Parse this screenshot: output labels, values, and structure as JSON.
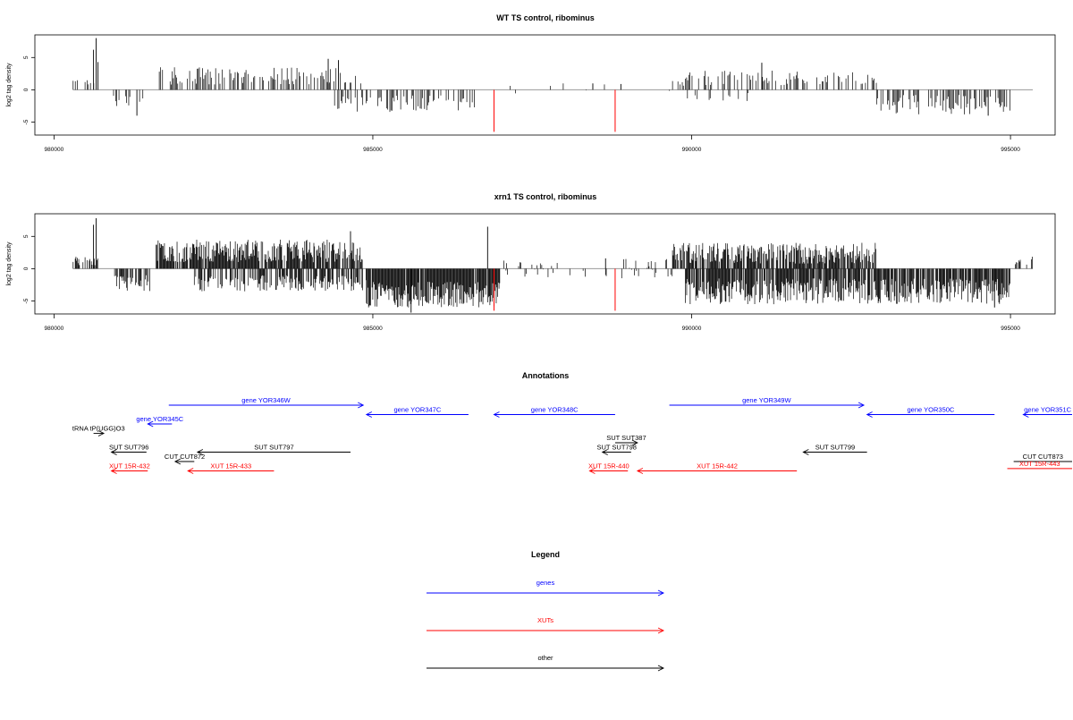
{
  "chart_data": [
    {
      "type": "bar",
      "title": "WT TS control, ribominus",
      "ylabel": "log2 tag density",
      "xlim": [
        979700,
        995700
      ],
      "ylim": [
        -7,
        8.5
      ],
      "x_ticks": [
        980000,
        985000,
        990000,
        995000
      ],
      "x_tick_labels": [
        "980000",
        "985000",
        "990000",
        "995000"
      ],
      "y_ticks": [
        5,
        0,
        -5
      ],
      "y_tick_labels": [
        "5",
        "0",
        "-5"
      ],
      "baseline_color": "#999999",
      "bar_color": "#000000",
      "marker_color": "#ff0000",
      "markers": [
        {
          "x": 986900,
          "y": -6.5
        },
        {
          "x": 988800,
          "y": -6.5
        }
      ],
      "signal": {
        "seed": 7,
        "step": 17,
        "regions": [
          {
            "start": 980300,
            "end": 980700,
            "min": 0.3,
            "max": 1.5,
            "prob": 0.3
          },
          {
            "start": 980900,
            "end": 981400,
            "min": -2.5,
            "max": -0.8,
            "prob": 0.35
          },
          {
            "start": 981600,
            "end": 984850,
            "min": 0.8,
            "max": 3.5,
            "prob": 0.55
          },
          {
            "start": 984400,
            "end": 986600,
            "min": -3.5,
            "max": -0.8,
            "prob": 0.45
          },
          {
            "start": 987000,
            "end": 989700,
            "min": -0.6,
            "max": 1.0,
            "prob": 0.03
          },
          {
            "start": 989700,
            "end": 992900,
            "min": 0.6,
            "max": 3.0,
            "prob": 0.45
          },
          {
            "start": 989900,
            "end": 990900,
            "min": -1.8,
            "max": -0.5,
            "prob": 0.15
          },
          {
            "start": 992900,
            "end": 995000,
            "min": -3.8,
            "max": -0.8,
            "prob": 0.55
          },
          {
            "start": 995000,
            "end": 995350,
            "min": 0.5,
            "max": 2.0,
            "prob": 0.25
          }
        ],
        "spikes": [
          {
            "x": 980660,
            "y": 8.0
          },
          {
            "x": 980620,
            "y": 6.2
          },
          {
            "x": 980690,
            "y": 4.3
          },
          {
            "x": 981300,
            "y": -4.0
          },
          {
            "x": 984300,
            "y": 4.8
          },
          {
            "x": 984460,
            "y": 4.6
          },
          {
            "x": 988450,
            "y": 1.0
          },
          {
            "x": 988890,
            "y": 0.9
          },
          {
            "x": 991100,
            "y": 4.2
          },
          {
            "x": 994650,
            "y": -4.0
          }
        ]
      }
    },
    {
      "type": "bar",
      "title": "xrn1 TS control, ribominus",
      "ylabel": "log2 tag density",
      "xlim": [
        979700,
        995700
      ],
      "ylim": [
        -7,
        8.5
      ],
      "x_ticks": [
        980000,
        985000,
        990000,
        995000
      ],
      "x_tick_labels": [
        "980000",
        "985000",
        "990000",
        "995000"
      ],
      "y_ticks": [
        5,
        0,
        -5
      ],
      "y_tick_labels": [
        "5",
        "0",
        "-5"
      ],
      "baseline_color": "#999999",
      "bar_color": "#000000",
      "marker_color": "#ff0000",
      "markers": [
        {
          "x": 986900,
          "y": -6.5
        },
        {
          "x": 988800,
          "y": -6.5
        }
      ],
      "signal": {
        "seed": 23,
        "step": 11,
        "regions": [
          {
            "start": 980300,
            "end": 980700,
            "min": 0.5,
            "max": 2.0,
            "prob": 0.3
          },
          {
            "start": 980950,
            "end": 981500,
            "min": -3.5,
            "max": -1.0,
            "prob": 0.6
          },
          {
            "start": 981600,
            "end": 984850,
            "min": 1.0,
            "max": 4.5,
            "prob": 0.85
          },
          {
            "start": 982200,
            "end": 984900,
            "min": -3.5,
            "max": -1.0,
            "prob": 0.6
          },
          {
            "start": 984900,
            "end": 987000,
            "min": -6.0,
            "max": -2.0,
            "prob": 0.95
          },
          {
            "start": 987000,
            "end": 989700,
            "min": -1.5,
            "max": 1.5,
            "prob": 0.2
          },
          {
            "start": 989700,
            "end": 992900,
            "min": 0.8,
            "max": 4.0,
            "prob": 0.75
          },
          {
            "start": 989900,
            "end": 995000,
            "min": -5.5,
            "max": -1.5,
            "prob": 0.85
          },
          {
            "start": 995000,
            "end": 995350,
            "min": 0.5,
            "max": 2.0,
            "prob": 0.3
          }
        ],
        "spikes": [
          {
            "x": 980660,
            "y": 7.8
          },
          {
            "x": 980620,
            "y": 6.8
          },
          {
            "x": 984650,
            "y": 5.8
          },
          {
            "x": 986800,
            "y": 6.5
          },
          {
            "x": 988650,
            "y": 1.6
          },
          {
            "x": 994750,
            "y": -6.0
          },
          {
            "x": 985600,
            "y": -6.8
          }
        ]
      }
    }
  ],
  "annotations": {
    "title": "Annotations",
    "xlim": [
      979700,
      995700
    ],
    "features": [
      {
        "label": "gene YOR346W",
        "start": 981800,
        "end": 984850,
        "strand": "+",
        "row": 0,
        "color": "#0000ff"
      },
      {
        "label": "gene YOR347C",
        "start": 984900,
        "end": 986500,
        "strand": "-",
        "row": 1,
        "color": "#0000ff"
      },
      {
        "label": "gene YOR348C",
        "start": 986900,
        "end": 988800,
        "strand": "-",
        "row": 1,
        "color": "#0000ff"
      },
      {
        "label": "gene YOR349W",
        "start": 989650,
        "end": 992700,
        "strand": "+",
        "row": 0,
        "color": "#0000ff"
      },
      {
        "label": "gene YOR350C",
        "start": 992750,
        "end": 994750,
        "strand": "-",
        "row": 1,
        "color": "#0000ff"
      },
      {
        "label": "gene YOR345C",
        "start": 981470,
        "end": 981850,
        "strand": "-",
        "row": 2,
        "color": "#0000ff"
      },
      {
        "label": "gene YOR351C",
        "start": 995200,
        "end": 996500,
        "strand": "-",
        "row": 1,
        "color": "#0000ff"
      },
      {
        "label": "tRNA tP(UGG)O3",
        "start": 980620,
        "end": 980780,
        "strand": "+",
        "row": 3,
        "color": "#000000"
      },
      {
        "label": "SUT SUT796",
        "start": 980900,
        "end": 981450,
        "strand": "-",
        "row": 5,
        "color": "#000000"
      },
      {
        "label": "SUT SUT797",
        "start": 982250,
        "end": 984650,
        "strand": "-",
        "row": 5,
        "color": "#000000"
      },
      {
        "label": "SUT SUT387",
        "start": 988800,
        "end": 989150,
        "strand": "+",
        "row": 4,
        "color": "#000000"
      },
      {
        "label": "SUT SUT798",
        "start": 988600,
        "end": 989050,
        "strand": "-",
        "row": 5,
        "color": "#000000"
      },
      {
        "label": "SUT SUT799",
        "start": 991750,
        "end": 992750,
        "strand": "-",
        "row": 5,
        "color": "#000000"
      },
      {
        "label": "CUT CUT872",
        "start": 981900,
        "end": 982200,
        "strand": "-",
        "row": 6,
        "color": "#000000"
      },
      {
        "label": "CUT CUT873",
        "start": 995050,
        "end": 996500,
        "strand": "+",
        "row": 6,
        "color": "#000000"
      },
      {
        "label": "XUT 15R-432",
        "start": 980900,
        "end": 981470,
        "strand": "-",
        "row": 7,
        "color": "#ff0000"
      },
      {
        "label": "XUT 15R-433",
        "start": 982100,
        "end": 983450,
        "strand": "-",
        "row": 7,
        "color": "#ff0000"
      },
      {
        "label": "XUT 15R-440",
        "start": 988400,
        "end": 989000,
        "strand": "-",
        "row": 7,
        "color": "#ff0000"
      },
      {
        "label": "XUT 15R-442",
        "start": 989150,
        "end": 991650,
        "strand": "-",
        "row": 7,
        "color": "#ff0000"
      },
      {
        "label": "XUT 15R-443",
        "start": 994950,
        "end": 996500,
        "strand": "+",
        "row": 6.75,
        "color": "#ff0000"
      }
    ]
  },
  "legend": {
    "title": "Legend",
    "items": [
      {
        "label": "genes",
        "color": "#0000ff"
      },
      {
        "label": "XUTs",
        "color": "#ff0000"
      },
      {
        "label": "other",
        "color": "#000000"
      }
    ]
  }
}
